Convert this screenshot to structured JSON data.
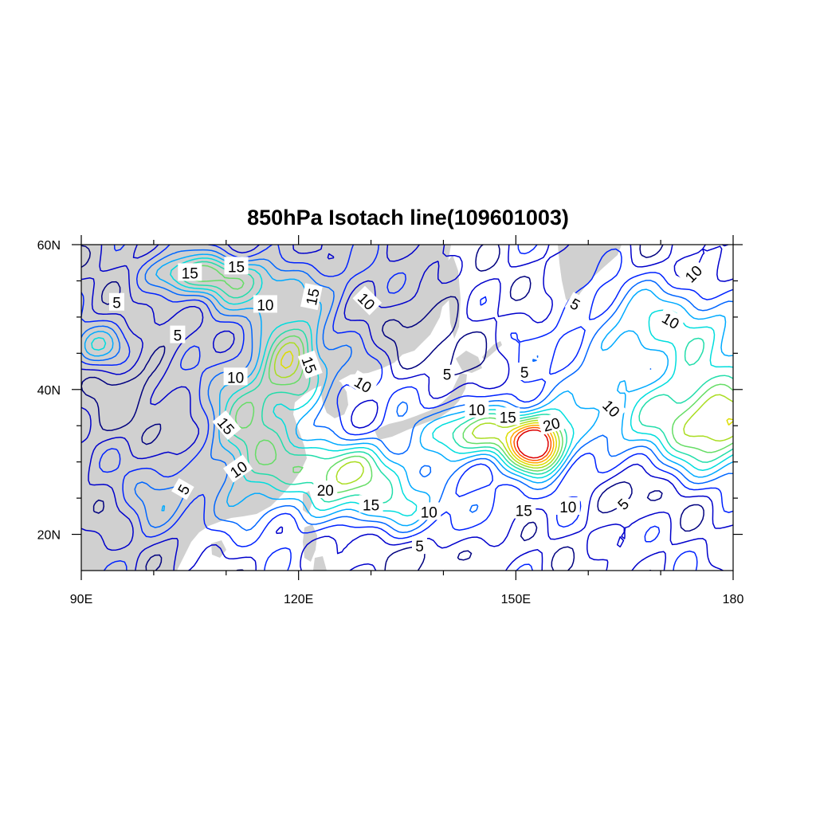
{
  "title": "850hPa Isotach line(109601003)",
  "map": {
    "lon_range": [
      90,
      180
    ],
    "lat_range": [
      15,
      60
    ],
    "land_color": "#d0d0d0",
    "ocean_color": "#ffffff",
    "x_ticks": [
      {
        "value": 90,
        "label": "90E"
      },
      {
        "value": 120,
        "label": "120E"
      },
      {
        "value": 150,
        "label": "150E"
      },
      {
        "value": 180,
        "label": "180"
      }
    ],
    "y_ticks": [
      {
        "value": 20,
        "label": "20N"
      },
      {
        "value": 40,
        "label": "40N"
      },
      {
        "value": 60,
        "label": "60N"
      }
    ],
    "x_minor_ticks": [
      100,
      110,
      130,
      140,
      160,
      170
    ],
    "y_minor_ticks": [
      25,
      30,
      35,
      45,
      50,
      55
    ]
  },
  "contour_levels": [
    {
      "value": 2,
      "color": "#00007f"
    },
    {
      "value": 4,
      "color": "#0000cc"
    },
    {
      "value": 6,
      "color": "#0022ff"
    },
    {
      "value": 8,
      "color": "#0066ff"
    },
    {
      "value": 10,
      "color": "#00aaff"
    },
    {
      "value": 12,
      "color": "#00dddd"
    },
    {
      "value": 14,
      "color": "#22ddaa"
    },
    {
      "value": 16,
      "color": "#66dd66"
    },
    {
      "value": 18,
      "color": "#aadd22"
    },
    {
      "value": 20,
      "color": "#dddd00"
    },
    {
      "value": 22,
      "color": "#ffaa00"
    },
    {
      "value": 24,
      "color": "#ff5500"
    },
    {
      "value": 26,
      "color": "#dd0000"
    }
  ],
  "contour_labels": [
    {
      "text": "15",
      "lon": 105.0,
      "lat": 56.1,
      "angle": 0
    },
    {
      "text": "15",
      "lon": 111.4,
      "lat": 57.0,
      "angle": 0
    },
    {
      "text": "15",
      "lon": 121.9,
      "lat": 52.8,
      "angle": -78
    },
    {
      "text": "5",
      "lon": 94.9,
      "lat": 52.0,
      "angle": 0
    },
    {
      "text": "10",
      "lon": 115.4,
      "lat": 51.7,
      "angle": 0
    },
    {
      "text": "10",
      "lon": 129.4,
      "lat": 52.2,
      "angle": 45
    },
    {
      "text": "5",
      "lon": 103.3,
      "lat": 47.5,
      "angle": 0
    },
    {
      "text": "15",
      "lon": 121.5,
      "lat": 43.4,
      "angle": 70
    },
    {
      "text": "10",
      "lon": 111.3,
      "lat": 41.7,
      "angle": 0
    },
    {
      "text": "10",
      "lon": 128.9,
      "lat": 40.7,
      "angle": 30
    },
    {
      "text": "5",
      "lon": 140.5,
      "lat": 42.1,
      "angle": 0
    },
    {
      "text": "5",
      "lon": 151.2,
      "lat": 42.4,
      "angle": 0
    },
    {
      "text": "10",
      "lon": 144.6,
      "lat": 37.2,
      "angle": 0
    },
    {
      "text": "15",
      "lon": 148.9,
      "lat": 36.2,
      "angle": 0
    },
    {
      "text": "20",
      "lon": 154.9,
      "lat": 35.2,
      "angle": -15
    },
    {
      "text": "15",
      "lon": 110.0,
      "lat": 35.0,
      "angle": 50
    },
    {
      "text": "10",
      "lon": 111.7,
      "lat": 29.0,
      "angle": -35
    },
    {
      "text": "5",
      "lon": 104.1,
      "lat": 26.2,
      "angle": -60
    },
    {
      "text": "20",
      "lon": 123.7,
      "lat": 26.1,
      "angle": 0
    },
    {
      "text": "15",
      "lon": 130.0,
      "lat": 24.1,
      "angle": 0
    },
    {
      "text": "10",
      "lon": 138.0,
      "lat": 23.1,
      "angle": 0
    },
    {
      "text": "15",
      "lon": 151.1,
      "lat": 23.3,
      "angle": 0
    },
    {
      "text": "10",
      "lon": 157.2,
      "lat": 23.8,
      "angle": 0
    },
    {
      "text": "5",
      "lon": 164.8,
      "lat": 24.2,
      "angle": -45
    },
    {
      "text": "5",
      "lon": 136.7,
      "lat": 18.4,
      "angle": 0
    },
    {
      "text": "10",
      "lon": 174.5,
      "lat": 56.0,
      "angle": -45
    },
    {
      "text": "5",
      "lon": 158.2,
      "lat": 51.8,
      "angle": 30
    },
    {
      "text": "10",
      "lon": 171.4,
      "lat": 49.5,
      "angle": 30
    },
    {
      "text": "10",
      "lon": 163.2,
      "lat": 37.4,
      "angle": 45
    }
  ]
}
